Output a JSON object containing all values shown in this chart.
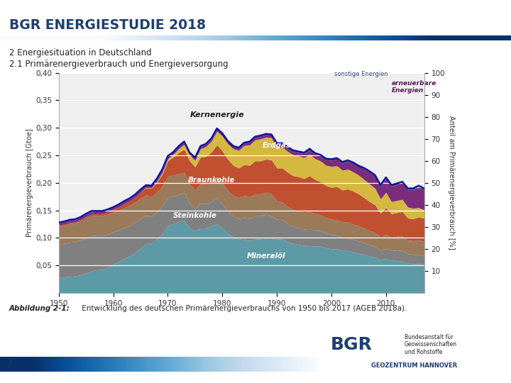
{
  "title": "BGR ENERGIESTUDIE 2018",
  "subtitle1": "2 Energiesituation in Deutschland",
  "subtitle2": "2.1 Primärenergieverbrauch und Energieversorgung",
  "caption_bold": "Abbildung 2-1:",
  "caption_normal": " Entwicklung des deutschen Primärenergieverbrauchs von 1950 bis 2017 (AGEB 2018a).",
  "page_number": "3",
  "ylabel_left": "Primärenergieverbrauch [Gtoe]",
  "ylabel_right": "Anteil am Primärenergieverbrauch [%]",
  "header_color": "#1E3F6E",
  "header_bar_color_left": "#4A86B8",
  "header_bar_color_right": "#85B8D8",
  "background_color": "#FFFFFF",
  "years": [
    1950,
    1951,
    1952,
    1953,
    1954,
    1955,
    1956,
    1957,
    1958,
    1959,
    1960,
    1961,
    1962,
    1963,
    1964,
    1965,
    1966,
    1967,
    1968,
    1969,
    1970,
    1971,
    1972,
    1973,
    1974,
    1975,
    1976,
    1977,
    1978,
    1979,
    1980,
    1981,
    1982,
    1983,
    1984,
    1985,
    1986,
    1987,
    1988,
    1989,
    1990,
    1991,
    1992,
    1993,
    1994,
    1995,
    1996,
    1997,
    1998,
    1999,
    2000,
    2001,
    2002,
    2003,
    2004,
    2005,
    2006,
    2007,
    2008,
    2009,
    2010,
    2011,
    2012,
    2013,
    2014,
    2015,
    2016,
    2017
  ],
  "mineraloil": [
    0.028,
    0.029,
    0.03,
    0.031,
    0.033,
    0.036,
    0.04,
    0.042,
    0.043,
    0.046,
    0.052,
    0.057,
    0.063,
    0.067,
    0.074,
    0.082,
    0.09,
    0.09,
    0.098,
    0.108,
    0.122,
    0.126,
    0.13,
    0.132,
    0.118,
    0.112,
    0.118,
    0.118,
    0.122,
    0.126,
    0.118,
    0.108,
    0.102,
    0.098,
    0.097,
    0.095,
    0.098,
    0.098,
    0.1,
    0.1,
    0.098,
    0.098,
    0.093,
    0.09,
    0.088,
    0.086,
    0.086,
    0.085,
    0.085,
    0.082,
    0.08,
    0.08,
    0.077,
    0.077,
    0.074,
    0.072,
    0.07,
    0.067,
    0.065,
    0.06,
    0.062,
    0.059,
    0.059,
    0.058,
    0.054,
    0.053,
    0.053,
    0.052
  ],
  "steinkohle": [
    0.06,
    0.061,
    0.062,
    0.062,
    0.063,
    0.064,
    0.064,
    0.063,
    0.062,
    0.061,
    0.059,
    0.057,
    0.056,
    0.055,
    0.054,
    0.053,
    0.051,
    0.049,
    0.049,
    0.05,
    0.052,
    0.05,
    0.049,
    0.05,
    0.045,
    0.041,
    0.045,
    0.044,
    0.044,
    0.047,
    0.044,
    0.04,
    0.037,
    0.037,
    0.04,
    0.04,
    0.042,
    0.042,
    0.043,
    0.04,
    0.036,
    0.035,
    0.033,
    0.031,
    0.031,
    0.03,
    0.031,
    0.029,
    0.028,
    0.027,
    0.026,
    0.025,
    0.024,
    0.024,
    0.023,
    0.022,
    0.021,
    0.02,
    0.019,
    0.017,
    0.019,
    0.018,
    0.019,
    0.019,
    0.017,
    0.017,
    0.017,
    0.016
  ],
  "braunkohle": [
    0.033,
    0.033,
    0.034,
    0.034,
    0.035,
    0.036,
    0.036,
    0.036,
    0.036,
    0.036,
    0.036,
    0.036,
    0.036,
    0.037,
    0.037,
    0.037,
    0.037,
    0.036,
    0.036,
    0.036,
    0.038,
    0.038,
    0.038,
    0.037,
    0.035,
    0.034,
    0.036,
    0.036,
    0.037,
    0.038,
    0.038,
    0.038,
    0.038,
    0.038,
    0.04,
    0.04,
    0.04,
    0.04,
    0.04,
    0.04,
    0.033,
    0.032,
    0.031,
    0.03,
    0.03,
    0.03,
    0.031,
    0.03,
    0.029,
    0.028,
    0.028,
    0.028,
    0.028,
    0.028,
    0.028,
    0.028,
    0.027,
    0.026,
    0.026,
    0.024,
    0.026,
    0.024,
    0.025,
    0.026,
    0.025,
    0.025,
    0.026,
    0.026
  ],
  "erdgas": [
    0.002,
    0.002,
    0.002,
    0.002,
    0.002,
    0.003,
    0.003,
    0.003,
    0.003,
    0.004,
    0.005,
    0.006,
    0.007,
    0.008,
    0.009,
    0.011,
    0.013,
    0.015,
    0.018,
    0.022,
    0.028,
    0.033,
    0.038,
    0.042,
    0.042,
    0.042,
    0.048,
    0.05,
    0.053,
    0.058,
    0.058,
    0.057,
    0.055,
    0.054,
    0.056,
    0.057,
    0.06,
    0.06,
    0.06,
    0.062,
    0.06,
    0.062,
    0.062,
    0.062,
    0.062,
    0.062,
    0.065,
    0.062,
    0.06,
    0.058,
    0.058,
    0.06,
    0.058,
    0.06,
    0.06,
    0.058,
    0.055,
    0.053,
    0.05,
    0.044,
    0.048,
    0.043,
    0.043,
    0.045,
    0.04,
    0.04,
    0.042,
    0.042
  ],
  "kernenergie": [
    0.0,
    0.0,
    0.0,
    0.0,
    0.0,
    0.0,
    0.0,
    0.0,
    0.0,
    0.0,
    0.0,
    0.0,
    0.0,
    0.0,
    0.0,
    0.0,
    0.001,
    0.001,
    0.002,
    0.003,
    0.004,
    0.005,
    0.007,
    0.009,
    0.01,
    0.012,
    0.015,
    0.018,
    0.02,
    0.025,
    0.027,
    0.028,
    0.03,
    0.032,
    0.035,
    0.037,
    0.038,
    0.04,
    0.04,
    0.04,
    0.038,
    0.038,
    0.038,
    0.038,
    0.038,
    0.038,
    0.039,
    0.038,
    0.038,
    0.037,
    0.038,
    0.038,
    0.036,
    0.036,
    0.035,
    0.034,
    0.033,
    0.032,
    0.03,
    0.026,
    0.028,
    0.022,
    0.022,
    0.022,
    0.02,
    0.019,
    0.017,
    0.015
  ],
  "erneuerbare": [
    0.004,
    0.004,
    0.004,
    0.004,
    0.004,
    0.004,
    0.004,
    0.004,
    0.004,
    0.004,
    0.004,
    0.004,
    0.004,
    0.004,
    0.004,
    0.004,
    0.004,
    0.004,
    0.004,
    0.004,
    0.004,
    0.004,
    0.004,
    0.004,
    0.004,
    0.004,
    0.004,
    0.004,
    0.004,
    0.004,
    0.004,
    0.004,
    0.004,
    0.004,
    0.004,
    0.005,
    0.005,
    0.005,
    0.005,
    0.005,
    0.005,
    0.005,
    0.006,
    0.006,
    0.006,
    0.007,
    0.008,
    0.008,
    0.009,
    0.01,
    0.011,
    0.012,
    0.013,
    0.014,
    0.015,
    0.017,
    0.019,
    0.021,
    0.022,
    0.023,
    0.025,
    0.028,
    0.029,
    0.03,
    0.032,
    0.034,
    0.035,
    0.037
  ],
  "sonstige": [
    0.001,
    0.001,
    0.001,
    0.001,
    0.001,
    0.001,
    0.001,
    0.001,
    0.001,
    0.001,
    0.001,
    0.001,
    0.001,
    0.001,
    0.001,
    0.001,
    0.001,
    0.001,
    0.001,
    0.001,
    0.001,
    0.001,
    0.001,
    0.001,
    0.001,
    0.001,
    0.001,
    0.001,
    0.001,
    0.001,
    0.001,
    0.001,
    0.001,
    0.001,
    0.001,
    0.001,
    0.001,
    0.001,
    0.001,
    0.001,
    0.002,
    0.002,
    0.002,
    0.002,
    0.002,
    0.002,
    0.002,
    0.002,
    0.002,
    0.002,
    0.002,
    0.002,
    0.002,
    0.002,
    0.002,
    0.002,
    0.002,
    0.002,
    0.002,
    0.002,
    0.002,
    0.002,
    0.002,
    0.002,
    0.002,
    0.002,
    0.002,
    0.002
  ],
  "total_line": [
    0.128,
    0.13,
    0.133,
    0.134,
    0.138,
    0.144,
    0.149,
    0.149,
    0.149,
    0.152,
    0.156,
    0.161,
    0.167,
    0.172,
    0.179,
    0.188,
    0.196,
    0.195,
    0.208,
    0.225,
    0.249,
    0.256,
    0.267,
    0.275,
    0.255,
    0.246,
    0.267,
    0.271,
    0.281,
    0.299,
    0.29,
    0.276,
    0.267,
    0.264,
    0.273,
    0.275,
    0.284,
    0.286,
    0.289,
    0.288,
    0.272,
    0.272,
    0.265,
    0.259,
    0.257,
    0.255,
    0.262,
    0.254,
    0.251,
    0.244,
    0.243,
    0.245,
    0.238,
    0.241,
    0.237,
    0.231,
    0.227,
    0.221,
    0.214,
    0.196,
    0.21,
    0.196,
    0.199,
    0.202,
    0.19,
    0.19,
    0.195,
    0.19
  ],
  "color_mineraloil": "#5E9AA5",
  "color_steinkohle": "#808080",
  "color_braunkohle": "#9B7A5A",
  "color_erdgas": "#C05030",
  "color_kernenergie": "#D4B840",
  "color_erneuerbare": "#7B2D7B",
  "color_sonstige": "#3A4A78",
  "color_line": "#1010A0",
  "label_mineraloil": "Mineralöl",
  "label_steinkohle": "Steinkohle",
  "label_braunkohle": "Braunkohle",
  "label_erdgas": "Erdgas",
  "label_kernenergie": "Kernenergie",
  "label_erneuerbare": "erneuerbare\nEnergien",
  "label_sonstige": "sonstige Energien"
}
